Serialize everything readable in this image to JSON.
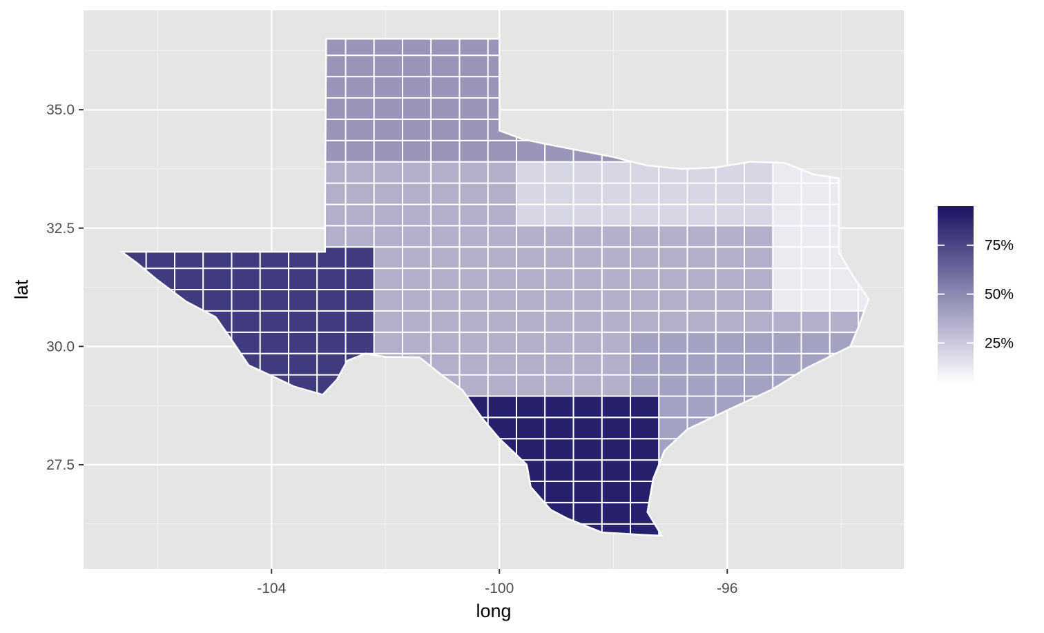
{
  "chart_data": {
    "type": "heatmap",
    "subtype": "choropleth map of Texas counties",
    "title": "",
    "xlabel": "long",
    "ylabel": "lat",
    "x_ticks": [
      -104,
      -100,
      -96
    ],
    "x_tick_labels": [
      "-104",
      "-100",
      "-96"
    ],
    "y_ticks": [
      27.5,
      30.0,
      32.5,
      35.0
    ],
    "y_tick_labels": [
      "27.5",
      "30.0",
      "32.5",
      "35.0"
    ],
    "xlim": [
      -107.3,
      -92.9
    ],
    "ylim": [
      25.3,
      37.1
    ],
    "grid": true,
    "legend": {
      "position": "right",
      "title": "",
      "type": "continuous colorbar",
      "low_color": "#ffffff",
      "high_color": "#1a1464",
      "range": [
        0.04,
        0.95
      ],
      "breaks": [
        0.25,
        0.5,
        0.75
      ],
      "labels": [
        "25%",
        "50%",
        "75%"
      ]
    },
    "state_outline_lonlat": [
      [
        -103.05,
        36.5
      ],
      [
        -100.0,
        36.5
      ],
      [
        -100.0,
        34.56
      ],
      [
        -99.6,
        34.38
      ],
      [
        -99.2,
        34.28
      ],
      [
        -98.6,
        34.14
      ],
      [
        -98.0,
        34.0
      ],
      [
        -97.4,
        33.82
      ],
      [
        -96.8,
        33.75
      ],
      [
        -96.2,
        33.78
      ],
      [
        -95.6,
        33.9
      ],
      [
        -95.0,
        33.88
      ],
      [
        -94.5,
        33.64
      ],
      [
        -94.04,
        33.55
      ],
      [
        -94.04,
        31.99
      ],
      [
        -93.8,
        31.5
      ],
      [
        -93.52,
        31.0
      ],
      [
        -93.7,
        30.4
      ],
      [
        -93.84,
        30.0
      ],
      [
        -94.6,
        29.55
      ],
      [
        -95.2,
        29.1
      ],
      [
        -96.0,
        28.65
      ],
      [
        -96.7,
        28.25
      ],
      [
        -97.1,
        27.8
      ],
      [
        -97.3,
        27.2
      ],
      [
        -97.4,
        26.5
      ],
      [
        -97.15,
        26.0
      ],
      [
        -97.5,
        26.02
      ],
      [
        -98.2,
        26.07
      ],
      [
        -98.8,
        26.36
      ],
      [
        -99.1,
        26.55
      ],
      [
        -99.45,
        27.03
      ],
      [
        -99.52,
        27.5
      ],
      [
        -100.0,
        28.05
      ],
      [
        -100.3,
        28.48
      ],
      [
        -100.65,
        29.08
      ],
      [
        -101.0,
        29.38
      ],
      [
        -101.4,
        29.77
      ],
      [
        -102.0,
        29.78
      ],
      [
        -102.35,
        29.85
      ],
      [
        -102.67,
        29.7
      ],
      [
        -102.85,
        29.3
      ],
      [
        -103.1,
        28.98
      ],
      [
        -103.6,
        29.15
      ],
      [
        -104.0,
        29.38
      ],
      [
        -104.4,
        29.6
      ],
      [
        -104.68,
        30.1
      ],
      [
        -104.98,
        30.62
      ],
      [
        -105.5,
        30.95
      ],
      [
        -106.0,
        31.4
      ],
      [
        -106.35,
        31.75
      ],
      [
        -106.63,
        32.0
      ],
      [
        -103.06,
        32.0
      ],
      [
        -103.06,
        33.0
      ],
      [
        -103.04,
        36.5
      ]
    ],
    "county_shading_by_region": {
      "panhandle": 0.45,
      "trans_pecos": 0.8,
      "south_texas": 0.9,
      "central": 0.35,
      "north_texas": 0.2,
      "east_texas": 0.12,
      "gulf_coast": 0.4
    }
  }
}
